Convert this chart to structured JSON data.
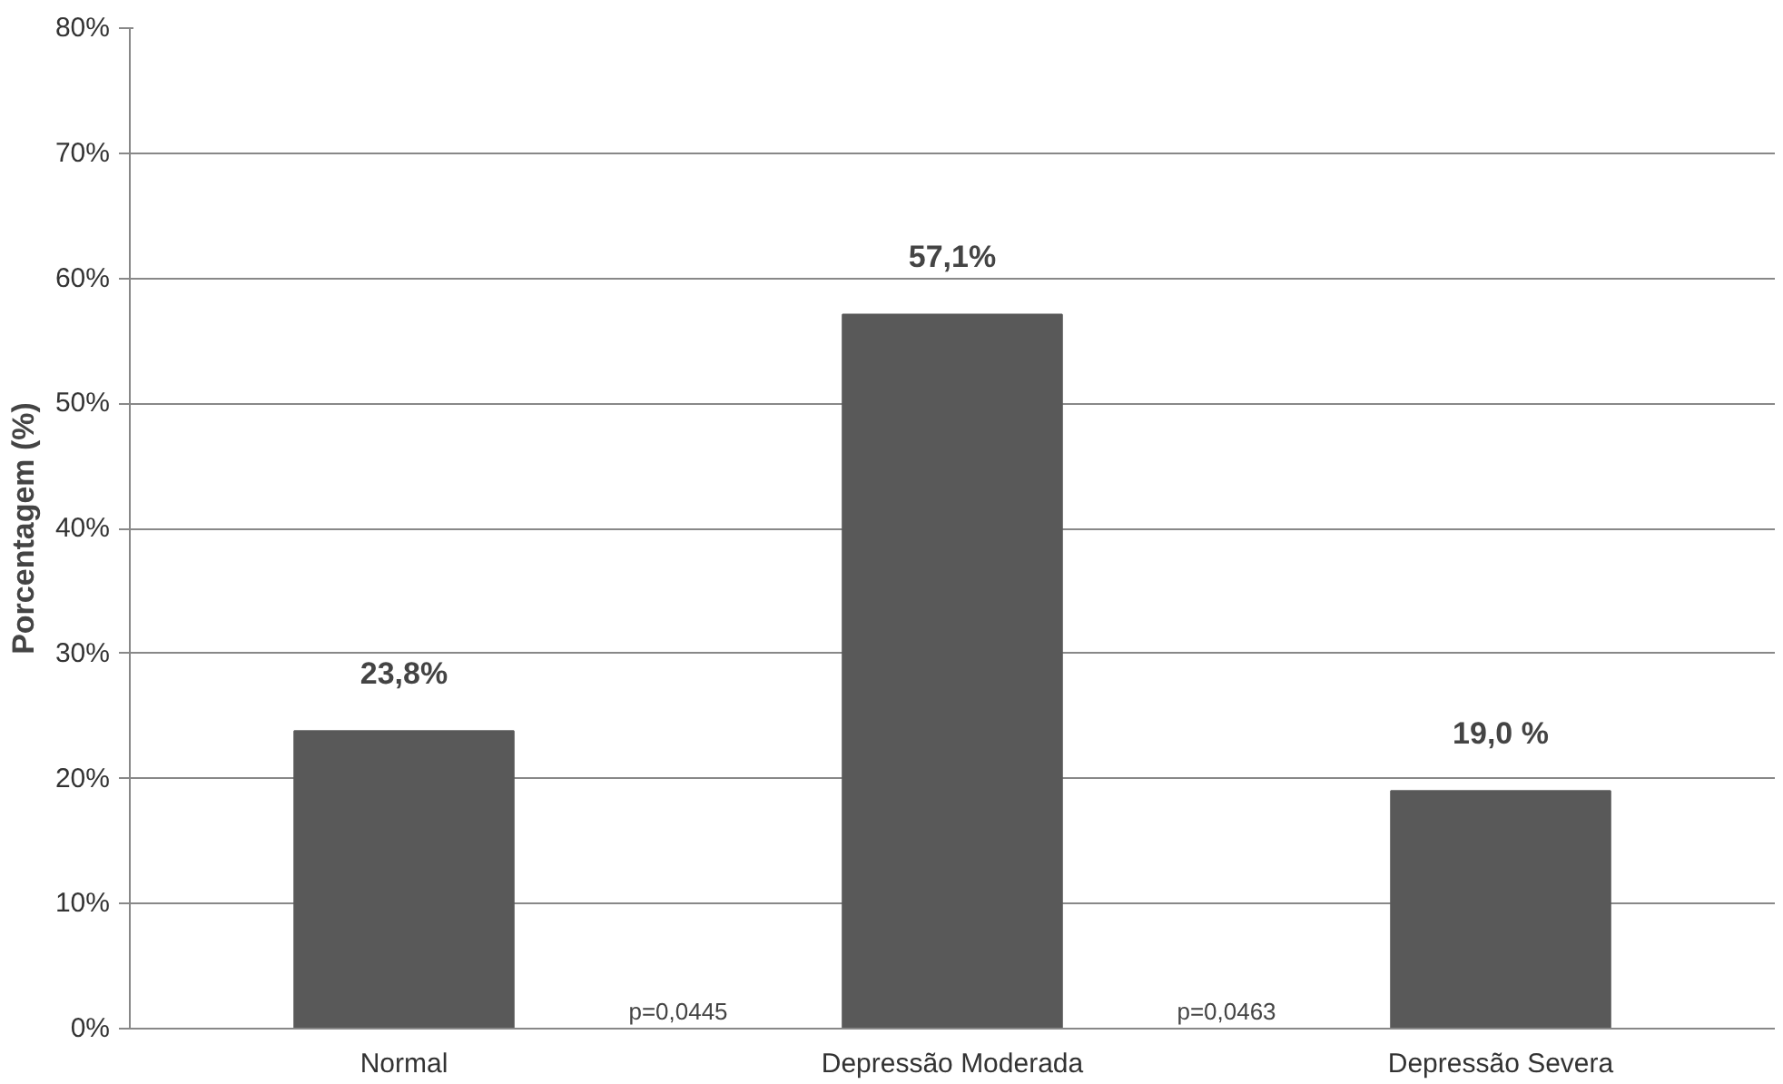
{
  "chart_data": {
    "type": "bar",
    "ylabel": "Porcentagem (%)",
    "categories": [
      "Normal",
      "Depressão Moderada",
      "Depressão Severa"
    ],
    "values": [
      23.8,
      57.1,
      19.0
    ],
    "color": "#595959",
    "value_labels": [
      "23,8%",
      "57,1%",
      "19,0 %"
    ],
    "ylim": [
      0,
      80
    ],
    "yticks": [
      {
        "value": 0,
        "label": "0%"
      },
      {
        "value": 10,
        "label": "10%"
      },
      {
        "value": 20,
        "label": "20%"
      },
      {
        "value": 30,
        "label": "30%"
      },
      {
        "value": 40,
        "label": "40%"
      },
      {
        "value": 50,
        "label": "50%"
      },
      {
        "value": 60,
        "label": "60%"
      },
      {
        "value": 70,
        "label": "70%"
      },
      {
        "value": 80,
        "label": "80%"
      }
    ],
    "grid": "y",
    "annotations": [
      "p=0,0445",
      "p=0,0463"
    ]
  }
}
